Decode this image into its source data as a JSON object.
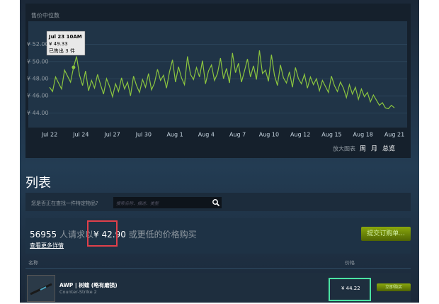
{
  "chart_data": {
    "type": "line",
    "title": "售价中位数",
    "xlabels": [
      "Jul 22",
      "Jul 24",
      "Jul 27",
      "Jul 30",
      "Aug 1",
      "Aug 4",
      "Aug 7",
      "Aug 10",
      "Aug 12",
      "Aug 15",
      "Aug 18",
      "Aug 21"
    ],
    "ylim": [
      42.3,
      54.7
    ],
    "yticks": [
      {
        "value": 44,
        "label": "¥ 44.00"
      },
      {
        "value": 46,
        "label": "¥ 46.00"
      },
      {
        "value": 48,
        "label": "¥ 48.00"
      },
      {
        "value": 50,
        "label": "¥ 50.00"
      },
      {
        "value": 52,
        "label": "¥ 52.00"
      }
    ],
    "grid": true,
    "series": [
      {
        "color": "#8bc53f",
        "values": [
          47.0,
          46.5,
          48.2,
          47.5,
          46.8,
          49.0,
          48.3,
          47.6,
          49.33,
          50.6,
          48.4,
          47.2,
          48.9,
          46.6,
          47.8,
          46.9,
          48.5,
          47.3,
          46.2,
          48.0,
          47.1,
          45.9,
          47.4,
          46.5,
          48.1,
          46.8,
          47.6,
          46.0,
          48.3,
          47.2,
          46.4,
          47.9,
          47.0,
          48.6,
          46.7,
          47.5,
          49.1,
          47.8,
          48.4,
          46.9,
          48.8,
          50.2,
          47.6,
          49.4,
          48.1,
          47.3,
          50.6,
          48.5,
          47.9,
          49.3,
          48.2,
          50.1,
          47.4,
          48.9,
          49.6,
          47.8,
          48.6,
          50.4,
          48.0,
          49.2,
          47.5,
          51.0,
          48.7,
          49.8,
          47.6,
          48.9,
          50.3,
          48.2,
          49.5,
          47.9,
          51.3,
          48.6,
          49.0,
          47.7,
          50.8,
          48.4,
          47.2,
          49.6,
          48.1,
          47.5,
          48.8,
          47.0,
          49.3,
          48.0,
          47.4,
          48.5,
          46.9,
          48.2,
          47.3,
          48.0,
          46.6,
          47.8,
          47.1,
          46.4,
          48.3,
          47.2,
          46.5,
          47.6,
          46.9,
          45.8,
          47.3,
          46.2,
          47.0,
          45.6,
          46.8,
          45.9,
          46.4,
          45.3,
          46.1,
          45.5,
          44.9,
          45.2,
          44.6,
          44.5,
          44.9,
          44.6
        ]
      }
    ],
    "tooltip": {
      "date": "Jul 23 10AM",
      "price": "¥ 49.33",
      "sold": "已售出 3 件",
      "index": 8
    },
    "zoom": {
      "label": "放大图表",
      "week": "周",
      "month": "月",
      "all": "总览"
    }
  },
  "listing": {
    "title": "列表",
    "search_prompt": "您是否正在查找一件特定物品?",
    "search_placeholder": "搜索名称、描述、类型",
    "buy_order": {
      "count": 56955,
      "text_before": "人请求以",
      "price": "¥ 42.90",
      "text_after": "或更低的价格购买",
      "details": "查看更多详情",
      "button": "提交订购单..."
    },
    "table": {
      "col_name": "名称",
      "col_price": "价格",
      "rows": [
        {
          "name": "AWP | 树蝰 (略有磨损)",
          "game": "Counter-Strike 2",
          "price": "¥ 44.22",
          "button": "立即购买"
        }
      ]
    }
  }
}
